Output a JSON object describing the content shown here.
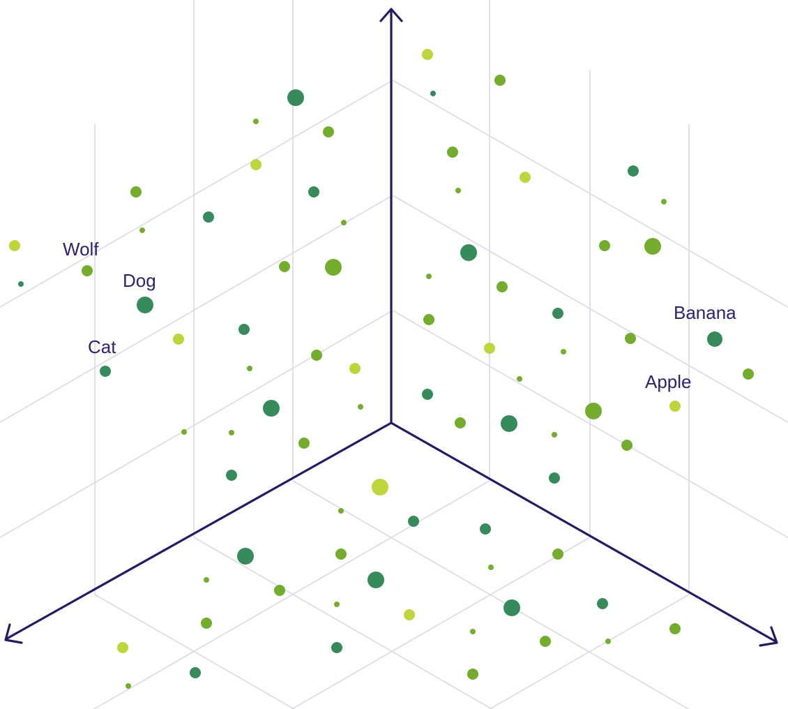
{
  "diagram": {
    "description": "3D embedding space illustration with word vectors",
    "colors": {
      "axis": "#221c62",
      "grid": "#dad9e6",
      "label": "#2a2370",
      "dot_dark": "#378a5a",
      "dot_mid": "#74ad2e",
      "dot_light": "#bed63c"
    },
    "labels": [
      {
        "id": "wolf",
        "text": "Wolf"
      },
      {
        "id": "dog",
        "text": "Dog"
      },
      {
        "id": "cat",
        "text": "Cat"
      },
      {
        "id": "banana",
        "text": "Banana"
      },
      {
        "id": "apple",
        "text": "Apple"
      }
    ]
  }
}
